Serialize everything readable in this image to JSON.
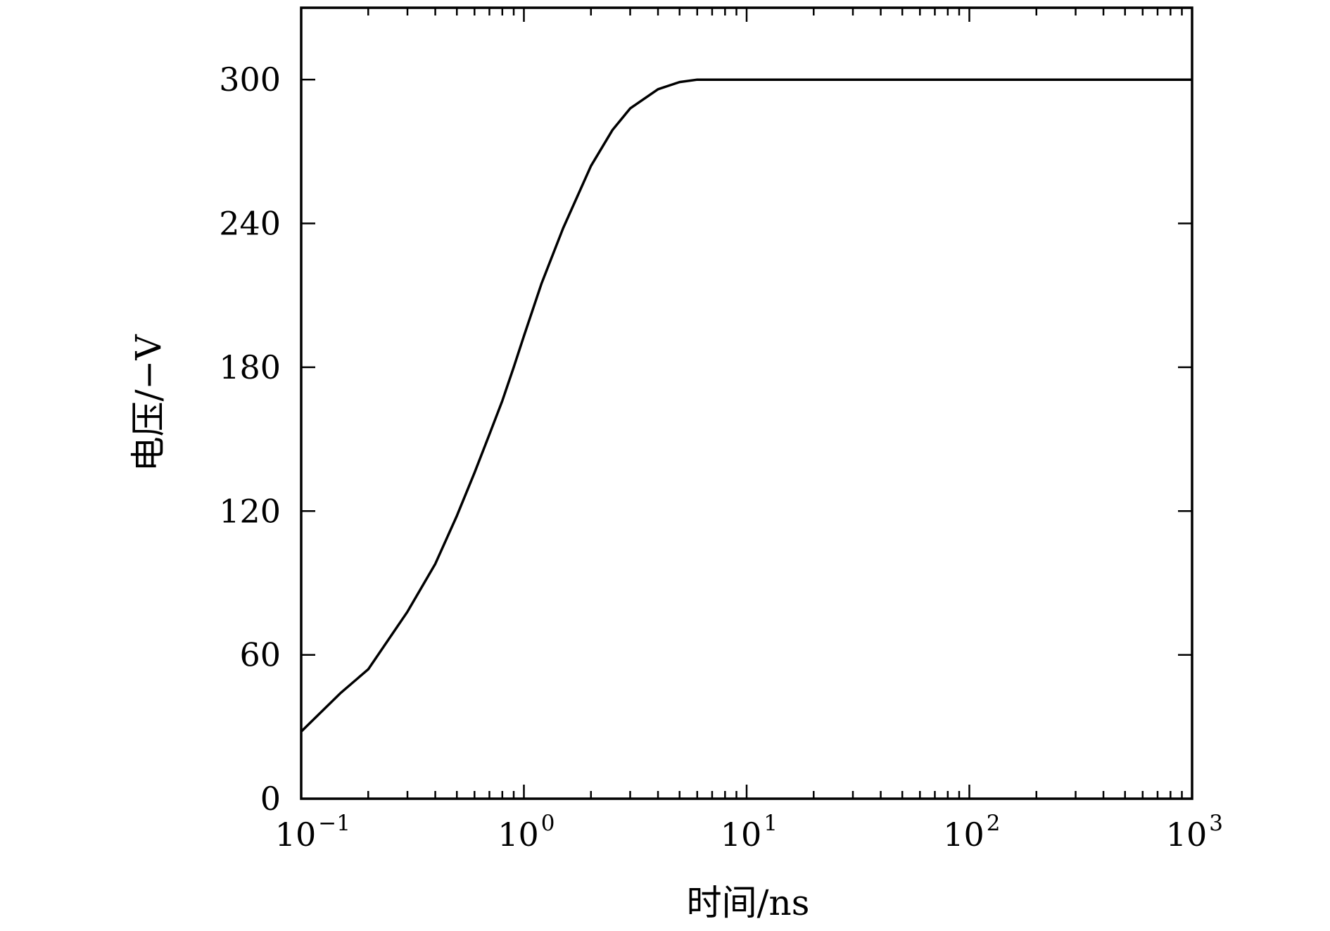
{
  "chart_data": {
    "type": "line",
    "xlabel": "时间/ns",
    "ylabel": "电压/−V",
    "xscale": "log",
    "xlim": [
      0.1,
      1000
    ],
    "ylim": [
      0,
      330
    ],
    "x_ticks": [
      {
        "base": "10",
        "exp": "−1"
      },
      {
        "base": "10",
        "exp": "0"
      },
      {
        "base": "10",
        "exp": "1"
      },
      {
        "base": "10",
        "exp": "2"
      },
      {
        "base": "10",
        "exp": "3"
      }
    ],
    "y_ticks": [
      {
        "value": 0,
        "label": "0"
      },
      {
        "value": 60,
        "label": "60"
      },
      {
        "value": 120,
        "label": "120"
      },
      {
        "value": 180,
        "label": "180"
      },
      {
        "value": 240,
        "label": "240"
      },
      {
        "value": 300,
        "label": "300"
      }
    ],
    "grid": false,
    "series": [
      {
        "color": "#000000",
        "x": [
          0.1,
          0.15,
          0.2,
          0.3,
          0.4,
          0.5,
          0.6,
          0.7,
          0.8,
          0.9,
          1.0,
          1.2,
          1.5,
          2.0,
          2.5,
          3.0,
          4.0,
          5.0,
          6.0,
          7.0,
          8.0,
          10,
          20,
          50,
          100,
          1000
        ],
        "y": [
          28,
          44,
          54,
          78,
          98,
          118,
          136,
          152,
          166,
          180,
          193,
          215,
          238,
          264,
          279,
          288,
          296,
          299,
          300,
          300,
          300,
          300,
          300,
          300,
          300,
          300
        ]
      }
    ]
  }
}
